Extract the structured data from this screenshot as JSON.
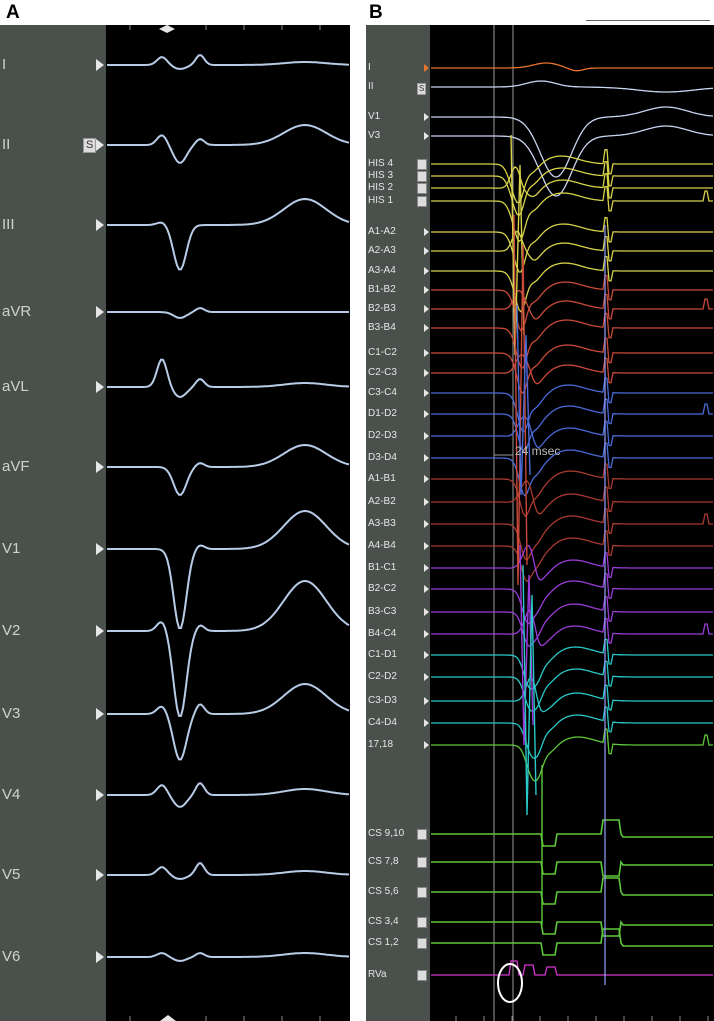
{
  "panels": {
    "A": {
      "letter": "A"
    },
    "B": {
      "letter": "B"
    }
  },
  "surface_ecg_leads": [
    "I",
    "II",
    "III",
    "aVR",
    "aVL",
    "aVF",
    "V1",
    "V2",
    "V3",
    "V4",
    "V5",
    "V6"
  ],
  "panel_a_badge": "S",
  "panel_b_badge": "S",
  "intracardiac_channels": [
    {
      "label": "I",
      "color": "#e8732e"
    },
    {
      "label": "II",
      "color": "#c8d4f0"
    },
    {
      "label": "V1",
      "color": "#c8d4f0"
    },
    {
      "label": "V3",
      "color": "#c8d4f0"
    },
    {
      "label": "HIS 4",
      "color": "#d7d24a"
    },
    {
      "label": "HIS 3",
      "color": "#d7d24a"
    },
    {
      "label": "HIS 2",
      "color": "#d7d24a"
    },
    {
      "label": "HIS 1",
      "color": "#d7d24a"
    },
    {
      "label": "A1-A2",
      "color": "#d7d24a"
    },
    {
      "label": "A2-A3",
      "color": "#d7d24a"
    },
    {
      "label": "A3-A4",
      "color": "#d7d24a"
    },
    {
      "label": "B1-B2",
      "color": "#c94a3a"
    },
    {
      "label": "B2-B3",
      "color": "#c94a3a"
    },
    {
      "label": "B3-B4",
      "color": "#c94a3a"
    },
    {
      "label": "C1-C2",
      "color": "#c94a3a"
    },
    {
      "label": "C2-C3",
      "color": "#c94a3a"
    },
    {
      "label": "C3-C4",
      "color": "#4a6ad8"
    },
    {
      "label": "D1-D2",
      "color": "#4a6ad8"
    },
    {
      "label": "D2-D3",
      "color": "#4a6ad8"
    },
    {
      "label": "D3-D4",
      "color": "#4a6ad8"
    },
    {
      "label": "A1-B1",
      "color": "#a83a30"
    },
    {
      "label": "A2-B2",
      "color": "#a83a30"
    },
    {
      "label": "A3-B3",
      "color": "#a83a30"
    },
    {
      "label": "A4-B4",
      "color": "#a83a30"
    },
    {
      "label": "B1-C1",
      "color": "#9a3cd8"
    },
    {
      "label": "B2-C2",
      "color": "#9a3cd8"
    },
    {
      "label": "B3-C3",
      "color": "#9a3cd8"
    },
    {
      "label": "B4-C4",
      "color": "#9a3cd8"
    },
    {
      "label": "C1-D1",
      "color": "#2ac8c8"
    },
    {
      "label": "C2-D2",
      "color": "#2ac8c8"
    },
    {
      "label": "C3-D3",
      "color": "#2ac8c8"
    },
    {
      "label": "C4-D4",
      "color": "#2ac8c8"
    },
    {
      "label": "17,18",
      "color": "#5ec83a"
    },
    {
      "label": "CS 9,10",
      "color": "#5ec83a"
    },
    {
      "label": "CS 7,8",
      "color": "#5ec83a"
    },
    {
      "label": "CS 5,6",
      "color": "#5ec83a"
    },
    {
      "label": "CS 3,4",
      "color": "#5ec83a"
    },
    {
      "label": "CS 1,2",
      "color": "#5ec83a"
    },
    {
      "label": "RVa",
      "color": "#d838d0"
    }
  ],
  "measurement_label": "24 msec",
  "colors": {
    "ecg_trace": "#b8cce8",
    "panel_background": "#000000",
    "label_gutter": "#4a504c",
    "caliper": "#9a9a9a",
    "annotation_circle": "#ffffff"
  }
}
